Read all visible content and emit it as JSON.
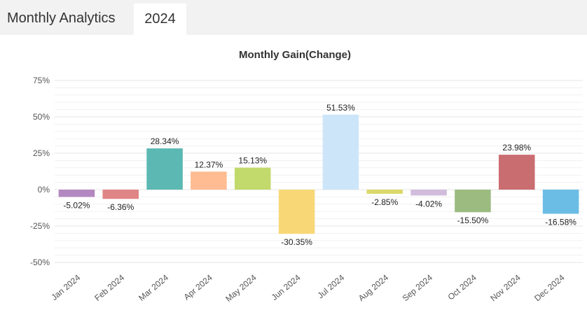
{
  "header": {
    "title": "Monthly Analytics",
    "tabs": [
      {
        "label": "2024",
        "active": true
      }
    ]
  },
  "chart_data": {
    "type": "bar",
    "title": "Monthly Gain(Change)",
    "xlabel": "",
    "ylabel": "",
    "categories": [
      "Jan 2024",
      "Feb 2024",
      "Mar 2024",
      "Apr 2024",
      "May 2024",
      "Jun 2024",
      "Jul 2024",
      "Aug 2024",
      "Sep 2024",
      "Oct 2024",
      "Nov 2024",
      "Dec 2024"
    ],
    "values": [
      -5.02,
      -6.36,
      28.34,
      12.37,
      15.13,
      -30.35,
      51.53,
      -2.85,
      -4.02,
      -15.5,
      23.98,
      -16.58
    ],
    "data_labels": [
      "-5.02%",
      "-6.36%",
      "28.34%",
      "12.37%",
      "15.13%",
      "-30.35%",
      "51.53%",
      "-2.85%",
      "-4.02%",
      "-15.50%",
      "23.98%",
      "-16.58%"
    ],
    "colors": [
      "#b388c0",
      "#e08585",
      "#5cb8b2",
      "#ffbb91",
      "#c2d96c",
      "#f8d776",
      "#cde5f9",
      "#dbd86a",
      "#d2bcdc",
      "#9bbb80",
      "#c96d70",
      "#6bbde5"
    ],
    "yticks": [
      75,
      50,
      25,
      0,
      -25,
      -50
    ],
    "ytick_labels": [
      "75%",
      "50%",
      "25%",
      "0%",
      "-25%",
      "-50%"
    ],
    "ylim": [
      -50,
      75
    ],
    "grid": true,
    "legend": "none"
  }
}
